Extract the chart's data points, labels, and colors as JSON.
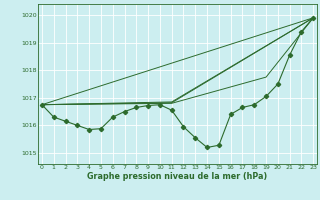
{
  "xlabel": "Graphe pression niveau de la mer (hPa)",
  "bg_color": "#cceef0",
  "grid_color": "#ffffff",
  "line_color": "#2d6b2d",
  "x_ticks": [
    0,
    1,
    2,
    3,
    4,
    5,
    6,
    7,
    8,
    9,
    10,
    11,
    12,
    13,
    14,
    15,
    16,
    17,
    18,
    19,
    20,
    21,
    22,
    23
  ],
  "xlim": [
    -0.3,
    23.3
  ],
  "ylim": [
    1014.6,
    1020.4
  ],
  "yticks": [
    1015,
    1016,
    1017,
    1018,
    1019,
    1020
  ],
  "straight_lines": [
    {
      "x": [
        0,
        23
      ],
      "y": [
        1016.75,
        1019.9
      ]
    },
    {
      "x": [
        0,
        23
      ],
      "y": [
        1016.75,
        1019.9
      ]
    },
    {
      "x": [
        0,
        11
      ],
      "y": [
        1016.75,
        1016.85
      ]
    },
    {
      "x": [
        0,
        11
      ],
      "y": [
        1016.75,
        1016.85
      ]
    }
  ],
  "forecast_lines": [
    {
      "x": [
        0,
        10,
        23
      ],
      "y": [
        1016.75,
        1016.8,
        1019.9
      ]
    },
    {
      "x": [
        0,
        10,
        23
      ],
      "y": [
        1016.75,
        1016.82,
        1019.9
      ]
    },
    {
      "x": [
        0,
        10,
        18,
        23
      ],
      "y": [
        1016.75,
        1016.8,
        1017.75,
        1019.9
      ]
    }
  ],
  "main_x": [
    0,
    1,
    2,
    3,
    4,
    5,
    6,
    7,
    8,
    9,
    10,
    11,
    12,
    13,
    14,
    15,
    16,
    17,
    18,
    19,
    20,
    21,
    22,
    23
  ],
  "main_y": [
    1016.75,
    1016.3,
    1016.15,
    1016.0,
    1015.85,
    1015.88,
    1016.3,
    1016.5,
    1016.65,
    1016.72,
    1016.75,
    1016.55,
    1015.95,
    1015.55,
    1015.2,
    1015.28,
    1016.4,
    1016.65,
    1016.75,
    1017.05,
    1017.5,
    1018.55,
    1019.4,
    1019.9
  ]
}
